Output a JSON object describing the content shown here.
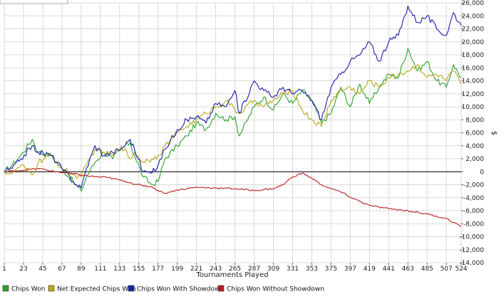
{
  "chart_data": {
    "type": "line",
    "title": "",
    "xlabel": "Tournaments Played",
    "ylabel": "$",
    "xlim": [
      1,
      524
    ],
    "ylim": [
      -14000,
      26000
    ],
    "x_ticks": [
      1,
      23,
      45,
      67,
      89,
      111,
      133,
      155,
      177,
      199,
      221,
      243,
      265,
      287,
      309,
      331,
      353,
      375,
      397,
      419,
      441,
      463,
      485,
      507,
      524
    ],
    "y_ticks": [
      -14000,
      -12000,
      -10000,
      -8000,
      -6000,
      -4000,
      -2000,
      0,
      2000,
      4000,
      6000,
      8000,
      10000,
      12000,
      14000,
      16000,
      18000,
      20000,
      22000,
      24000,
      26000
    ],
    "y_tick_labels": [
      "-14,000",
      "-12,000",
      "-10,000",
      "-8,000",
      "-6,000",
      "-4,000",
      "-2,000",
      "0",
      "2,000",
      "4,000",
      "6,000",
      "8,000",
      "10,000",
      "12,000",
      "14,000",
      "16,000",
      "18,000",
      "20,000",
      "22,000",
      "24,000",
      "26,000"
    ],
    "grid": true,
    "legend_position": "bottom",
    "series": [
      {
        "name": "Chips Won",
        "color": "#2ca02c",
        "x": [
          1,
          10,
          20,
          33,
          40,
          55,
          67,
          80,
          89,
          95,
          105,
          115,
          125,
          135,
          145,
          150,
          160,
          170,
          177,
          185,
          199,
          210,
          221,
          232,
          243,
          255,
          265,
          270,
          287,
          298,
          309,
          320,
          331,
          342,
          353,
          364,
          375,
          386,
          397,
          408,
          419,
          430,
          441,
          452,
          463,
          474,
          485,
          496,
          507,
          515,
          524
        ],
        "y": [
          0,
          1000,
          2500,
          5000,
          3000,
          2500,
          500,
          -1500,
          -3000,
          -800,
          1500,
          3000,
          2000,
          3500,
          4500,
          2500,
          -800,
          -2000,
          -1500,
          2000,
          4000,
          5500,
          7500,
          6500,
          9000,
          8000,
          8500,
          5500,
          10000,
          11500,
          9500,
          12000,
          10500,
          12500,
          11000,
          7500,
          9000,
          13000,
          10000,
          13500,
          10500,
          13000,
          15000,
          14500,
          19000,
          15500,
          17000,
          14000,
          13000,
          16500,
          14500
        ]
      },
      {
        "name": "Net Expected Chips Won",
        "color": "#b8a81c",
        "x": [
          1,
          10,
          20,
          33,
          40,
          55,
          67,
          80,
          89,
          95,
          105,
          115,
          125,
          135,
          145,
          150,
          160,
          170,
          177,
          185,
          199,
          210,
          221,
          232,
          243,
          255,
          265,
          270,
          287,
          298,
          309,
          320,
          331,
          342,
          353,
          364,
          375,
          386,
          397,
          408,
          419,
          430,
          441,
          452,
          463,
          474,
          485,
          496,
          507,
          515,
          524
        ],
        "y": [
          0,
          -300,
          1000,
          -500,
          1500,
          2500,
          500,
          -500,
          -800,
          1000,
          3500,
          3000,
          2500,
          4000,
          2000,
          3000,
          1500,
          2000,
          2500,
          4000,
          6000,
          7000,
          8000,
          9000,
          10000,
          11000,
          9500,
          9000,
          11000,
          10000,
          11000,
          12000,
          12500,
          9500,
          8000,
          7000,
          11000,
          12500,
          13000,
          12000,
          14000,
          13000,
          14500,
          15000,
          15500,
          16500,
          14500,
          15000,
          14000,
          15500,
          13500
        ]
      },
      {
        "name": "Chips Won With Showdown",
        "color": "#1c1cab",
        "x": [
          1,
          10,
          20,
          33,
          40,
          55,
          67,
          80,
          89,
          95,
          105,
          115,
          125,
          135,
          145,
          150,
          160,
          170,
          177,
          185,
          199,
          210,
          221,
          232,
          243,
          255,
          265,
          270,
          287,
          298,
          309,
          320,
          331,
          342,
          353,
          364,
          375,
          386,
          397,
          408,
          419,
          430,
          441,
          452,
          463,
          474,
          485,
          496,
          507,
          515,
          524
        ],
        "y": [
          0,
          500,
          2000,
          4000,
          3000,
          2500,
          500,
          -1500,
          -2500,
          500,
          4000,
          2500,
          3000,
          3500,
          5000,
          3500,
          0,
          -200,
          1000,
          3500,
          6500,
          8000,
          8500,
          7500,
          10500,
          10000,
          12500,
          9000,
          14000,
          12500,
          11500,
          13000,
          12000,
          12500,
          11000,
          8000,
          13000,
          15000,
          17000,
          18000,
          20000,
          17000,
          20000,
          21000,
          25500,
          23000,
          24000,
          22000,
          21000,
          24500,
          22500
        ]
      },
      {
        "name": "Chips Won Without Showdown",
        "color": "#b81c1c",
        "x": [
          1,
          20,
          40,
          60,
          80,
          89,
          100,
          120,
          140,
          160,
          170,
          177,
          185,
          199,
          221,
          243,
          265,
          287,
          309,
          320,
          331,
          342,
          353,
          364,
          375,
          386,
          397,
          419,
          441,
          463,
          485,
          507,
          515,
          524
        ],
        "y": [
          0,
          200,
          500,
          0,
          -300,
          -500,
          -700,
          -900,
          -1500,
          -2200,
          -2300,
          -2900,
          -3300,
          -2800,
          -2400,
          -2500,
          -2600,
          -2900,
          -2600,
          -2000,
          -800,
          -200,
          -1000,
          -2000,
          -2600,
          -3100,
          -3900,
          -5200,
          -5700,
          -6000,
          -6500,
          -7200,
          -7800,
          -8400
        ]
      }
    ]
  }
}
